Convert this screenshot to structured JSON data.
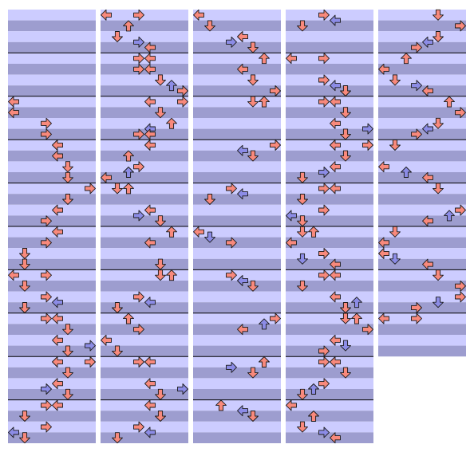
{
  "columns": [
    {
      "measures": 10,
      "notes": [
        [
          8,
          0
        ],
        [
          9,
          0
        ],
        [
          10,
          3
        ],
        [
          11,
          3
        ],
        [
          12,
          4
        ],
        [
          13,
          4
        ],
        [
          14,
          5
        ],
        [
          15,
          5
        ],
        [
          16,
          7
        ],
        [
          17,
          5
        ],
        [
          18,
          4
        ],
        [
          19,
          3
        ],
        [
          20,
          4
        ],
        [
          21,
          3
        ],
        [
          22,
          1
        ],
        [
          23,
          1
        ],
        [
          24,
          0
        ],
        [
          24,
          3
        ],
        [
          25,
          1
        ],
        [
          26,
          3
        ],
        [
          26.5,
          4
        ],
        [
          27,
          1
        ],
        [
          28,
          3
        ],
        [
          28,
          4
        ],
        [
          29,
          5
        ],
        [
          30,
          4
        ],
        [
          30.5,
          7
        ],
        [
          31,
          5
        ],
        [
          32,
          4
        ],
        [
          32,
          7
        ],
        [
          33,
          5
        ],
        [
          34,
          4
        ],
        [
          34.5,
          3
        ],
        [
          35,
          5
        ],
        [
          36,
          3
        ],
        [
          36,
          4
        ],
        [
          37,
          1
        ],
        [
          38,
          3
        ],
        [
          38.5,
          0
        ],
        [
          39,
          1
        ]
      ]
    },
    {
      "measures": 10,
      "notes": [
        [
          0,
          0
        ],
        [
          0,
          3
        ],
        [
          1,
          2
        ],
        [
          2,
          1
        ],
        [
          2.5,
          3
        ],
        [
          3,
          4
        ],
        [
          4,
          3
        ],
        [
          4,
          4
        ],
        [
          5,
          3
        ],
        [
          5,
          4
        ],
        [
          6,
          5
        ],
        [
          6.5,
          6
        ],
        [
          7,
          7
        ],
        [
          8,
          4
        ],
        [
          8,
          7
        ],
        [
          9,
          5
        ],
        [
          10,
          6
        ],
        [
          10.5,
          4
        ],
        [
          11,
          3
        ],
        [
          11,
          4
        ],
        [
          12,
          4
        ],
        [
          13,
          2
        ],
        [
          14,
          3
        ],
        [
          14.5,
          2
        ],
        [
          15,
          0
        ],
        [
          16,
          1
        ],
        [
          16,
          2
        ],
        [
          18,
          4
        ],
        [
          18.5,
          3
        ],
        [
          19,
          5
        ],
        [
          20,
          6
        ],
        [
          21,
          4
        ],
        [
          23,
          5
        ],
        [
          24,
          5
        ],
        [
          24,
          6
        ],
        [
          26,
          3
        ],
        [
          26.5,
          4
        ],
        [
          27,
          1
        ],
        [
          28,
          2
        ],
        [
          29,
          3
        ],
        [
          30,
          0
        ],
        [
          31,
          1
        ],
        [
          32,
          3
        ],
        [
          32,
          4
        ],
        [
          34,
          4
        ],
        [
          34.5,
          7
        ],
        [
          35,
          5
        ],
        [
          36,
          4
        ],
        [
          37,
          5
        ],
        [
          38,
          3
        ],
        [
          38.5,
          4
        ],
        [
          39,
          1
        ]
      ]
    },
    {
      "measures": 10,
      "notes": [
        [
          0,
          0
        ],
        [
          1,
          1
        ],
        [
          2,
          4
        ],
        [
          2.5,
          3
        ],
        [
          3,
          5
        ],
        [
          4,
          6
        ],
        [
          5,
          4
        ],
        [
          6,
          5
        ],
        [
          7,
          7
        ],
        [
          8,
          5
        ],
        [
          8,
          6
        ],
        [
          12,
          7
        ],
        [
          12.5,
          4
        ],
        [
          13,
          5
        ],
        [
          16,
          3
        ],
        [
          16.5,
          4
        ],
        [
          17,
          1
        ],
        [
          20,
          0
        ],
        [
          20.5,
          1
        ],
        [
          21,
          3
        ],
        [
          24,
          3
        ],
        [
          24.5,
          4
        ],
        [
          25,
          5
        ],
        [
          28,
          7
        ],
        [
          28.5,
          6
        ],
        [
          29,
          4
        ],
        [
          32,
          6
        ],
        [
          32.5,
          3
        ],
        [
          33,
          5
        ],
        [
          36,
          2
        ],
        [
          36.5,
          4
        ],
        [
          37,
          5
        ]
      ]
    },
    {
      "measures": 10,
      "notes": [
        [
          0,
          3
        ],
        [
          0.5,
          4
        ],
        [
          1,
          1
        ],
        [
          4,
          0
        ],
        [
          4,
          3
        ],
        [
          6,
          3
        ],
        [
          6.5,
          4
        ],
        [
          7,
          5
        ],
        [
          8,
          3
        ],
        [
          8,
          4
        ],
        [
          9,
          5
        ],
        [
          10,
          4
        ],
        [
          10.5,
          7
        ],
        [
          11,
          5
        ],
        [
          12,
          4
        ],
        [
          12,
          7
        ],
        [
          13,
          5
        ],
        [
          14,
          4
        ],
        [
          14.5,
          3
        ],
        [
          15,
          1
        ],
        [
          16,
          3
        ],
        [
          16,
          4
        ],
        [
          17,
          1
        ],
        [
          18,
          3
        ],
        [
          18.5,
          0
        ],
        [
          19,
          1
        ],
        [
          20,
          1
        ],
        [
          20,
          2
        ],
        [
          21,
          0
        ],
        [
          22,
          3
        ],
        [
          22.5,
          1
        ],
        [
          23,
          4
        ],
        [
          24,
          3
        ],
        [
          24,
          4
        ],
        [
          25,
          1
        ],
        [
          26,
          4
        ],
        [
          26.5,
          6
        ],
        [
          27,
          5
        ],
        [
          28,
          5
        ],
        [
          28,
          6
        ],
        [
          29,
          7
        ],
        [
          30,
          4
        ],
        [
          30.5,
          5
        ],
        [
          31,
          3
        ],
        [
          32,
          3
        ],
        [
          32,
          4
        ],
        [
          33,
          5
        ],
        [
          34,
          3
        ],
        [
          34.5,
          2
        ],
        [
          35,
          1
        ],
        [
          36,
          0
        ],
        [
          37,
          2
        ],
        [
          38,
          1
        ],
        [
          38.5,
          3
        ],
        [
          39,
          4
        ]
      ]
    },
    {
      "measures": 8,
      "notes": [
        [
          0,
          5
        ],
        [
          1,
          7
        ],
        [
          2,
          5
        ],
        [
          2.5,
          4
        ],
        [
          3,
          3
        ],
        [
          4,
          2
        ],
        [
          5,
          0
        ],
        [
          6,
          1
        ],
        [
          6.5,
          3
        ],
        [
          7,
          4
        ],
        [
          8,
          6
        ],
        [
          9,
          7
        ],
        [
          10,
          5
        ],
        [
          10.5,
          4
        ],
        [
          11,
          3
        ],
        [
          12,
          1
        ],
        [
          14,
          0
        ],
        [
          14.5,
          2
        ],
        [
          15,
          4
        ],
        [
          16,
          5
        ],
        [
          18,
          7
        ],
        [
          18.5,
          6
        ],
        [
          19,
          4
        ],
        [
          20,
          1
        ],
        [
          21,
          0
        ],
        [
          22,
          0
        ],
        [
          22.5,
          1
        ],
        [
          23,
          4
        ],
        [
          24,
          5
        ],
        [
          25,
          7
        ],
        [
          26,
          7
        ],
        [
          26.5,
          5
        ],
        [
          27,
          3
        ],
        [
          28,
          0
        ],
        [
          28,
          3
        ]
      ]
    }
  ]
}
